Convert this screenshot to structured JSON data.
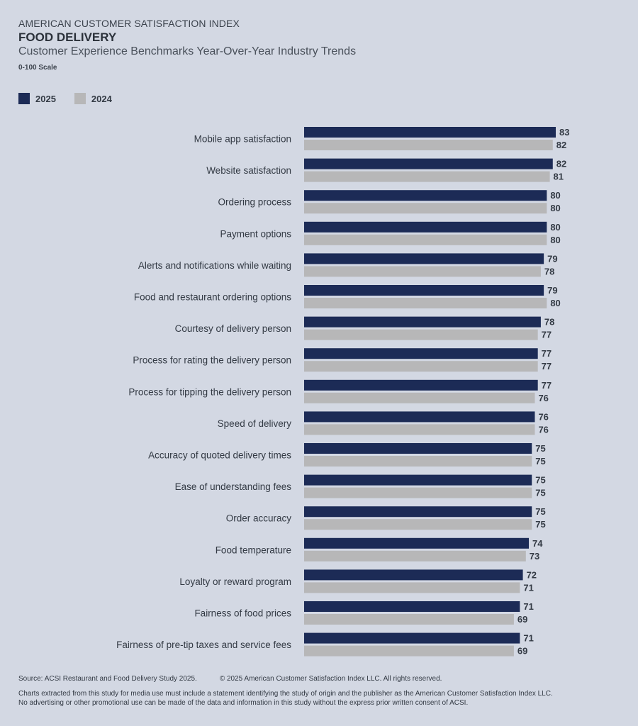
{
  "header": {
    "org": "AMERICAN CUSTOMER SATISFACTION INDEX",
    "title": "FOOD DELIVERY",
    "subtitle": "Customer Experience Benchmarks Year-Over-Year Industry Trends",
    "scale": "0-100 Scale"
  },
  "legend": [
    {
      "label": "2025",
      "color": "#1c2b56"
    },
    {
      "label": "2024",
      "color": "#b7b7b8"
    }
  ],
  "chart_data": {
    "type": "bar",
    "orientation": "horizontal",
    "categories": [
      "Mobile app satisfaction",
      "Website satisfaction",
      "Ordering process",
      "Payment options",
      "Alerts and notifications while waiting",
      "Food and restaurant ordering options",
      "Courtesy of delivery person",
      "Process for rating the delivery person",
      "Process for tipping the delivery person",
      "Speed of delivery",
      "Accuracy of quoted delivery times",
      "Ease of understanding fees",
      "Order accuracy",
      "Food temperature",
      "Loyalty or reward program",
      "Fairness of food prices",
      "Fairness of pre-tip taxes and service fees"
    ],
    "series": [
      {
        "name": "2025",
        "color": "#1c2b56",
        "values": [
          83,
          82,
          80,
          80,
          79,
          79,
          78,
          77,
          77,
          76,
          75,
          75,
          75,
          74,
          72,
          71,
          71
        ]
      },
      {
        "name": "2024",
        "color": "#b7b7b8",
        "values": [
          82,
          81,
          80,
          80,
          78,
          80,
          77,
          77,
          76,
          76,
          75,
          75,
          75,
          73,
          71,
          69,
          69
        ]
      }
    ],
    "xlim": [
      0,
      100
    ]
  },
  "footer": {
    "source": "Source: ACSI Restaurant and Food Delivery Study 2025.",
    "copyright": "© 2025 American Customer Satisfaction Index LLC. All rights reserved.",
    "note_line1": "Charts extracted from this study for media use must include a statement identifying the study of origin and the publisher as the American Customer Satisfaction Index LLC.",
    "note_line2": "No advertising or other promotional use can be made of the data and information in this study without the express prior written consent of ACSI."
  }
}
